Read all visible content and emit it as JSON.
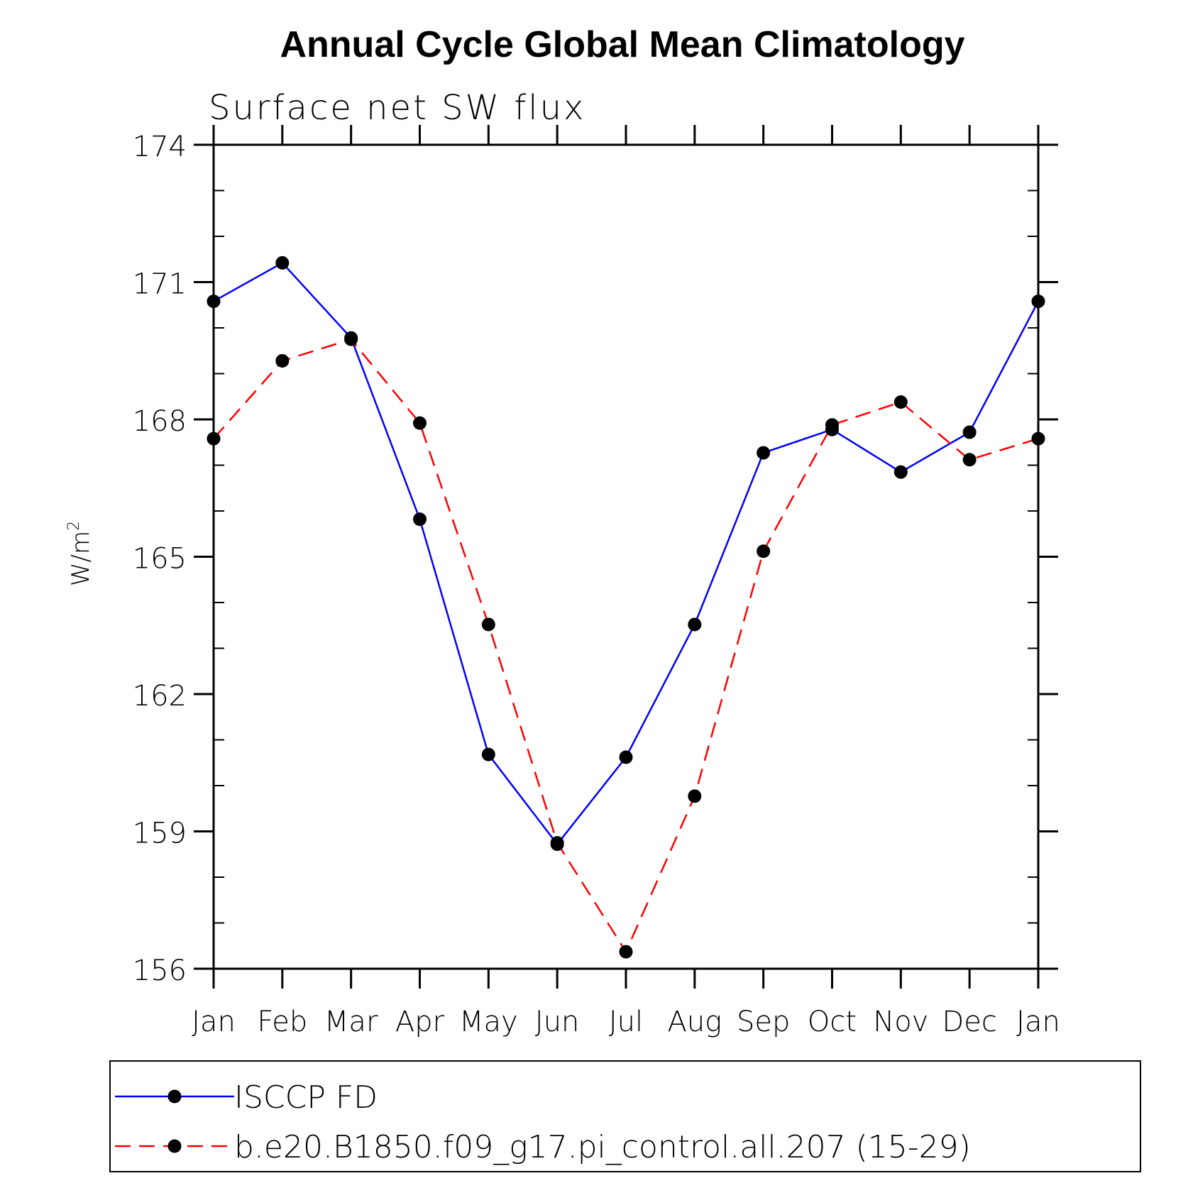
{
  "chart_data": {
    "type": "line",
    "title": "Annual Cycle Global Mean Climatology",
    "subtitle": "Surface net SW flux",
    "ylabel": "W/m",
    "ylabel_superscript": "2",
    "xlabel": "",
    "categories": [
      "Jan",
      "Feb",
      "Mar",
      "Apr",
      "May",
      "Jun",
      "Jul",
      "Aug",
      "Sep",
      "Oct",
      "Nov",
      "Dec",
      "Jan"
    ],
    "ylim": [
      156,
      174
    ],
    "yticks": [
      156,
      159,
      162,
      165,
      168,
      171,
      174
    ],
    "yticks_minor_step": 1,
    "grid": false,
    "legend_position": "bottom",
    "series": [
      {
        "name": "ISCCP FD",
        "color": "#0000ff",
        "style": "solid",
        "marker": "filled-circle",
        "values": [
          170.58,
          171.42,
          169.78,
          165.82,
          160.68,
          158.72,
          160.62,
          163.52,
          167.27,
          167.78,
          166.85,
          167.72,
          170.58
        ]
      },
      {
        "name": "b.e20.B1850.f09_g17.pi_control.all.207 (15-29)",
        "color": "#ff0000",
        "style": "dashed",
        "marker": "filled-circle",
        "values": [
          167.58,
          169.28,
          169.75,
          167.92,
          163.52,
          158.75,
          156.37,
          159.77,
          165.12,
          167.88,
          168.38,
          167.12,
          167.58
        ]
      }
    ]
  }
}
